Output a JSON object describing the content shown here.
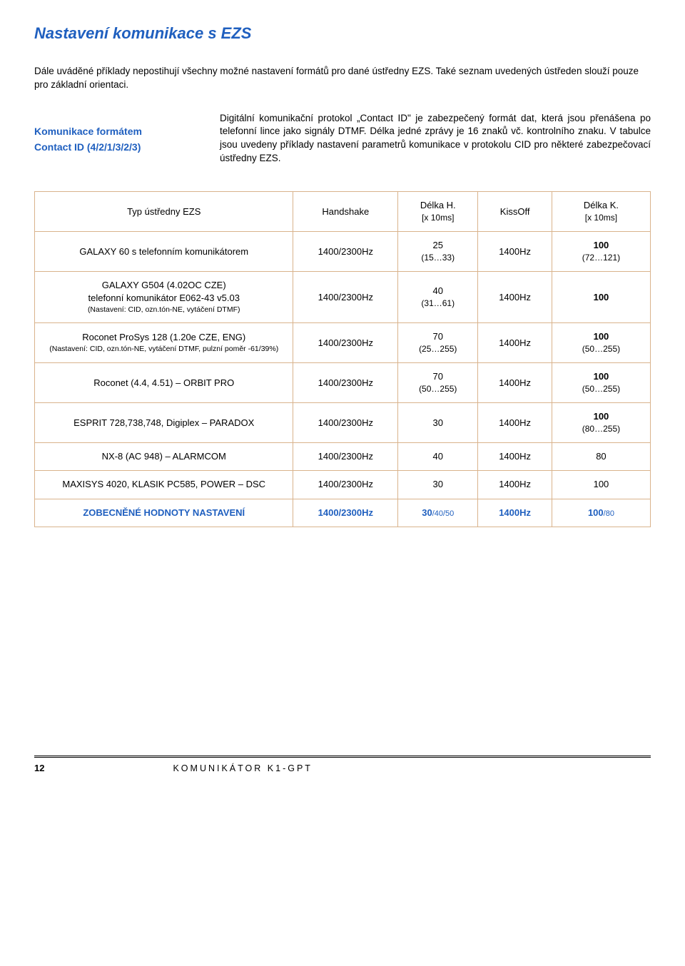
{
  "title": "Nastavení komunikace s EZS",
  "intro": "Dále uváděné příklady nepostihují všechny možné nastavení formátů pro dané ústředny EZS. Také seznam uvedených ústředen slouží pouze pro základní orientaci.",
  "info": {
    "left_line1": "Komunikace formátem",
    "left_line2": "Contact ID (4/2/1/3/2/3)",
    "right": "Digitální komunikační protokol „Contact ID\" je zabezpečený formát dat, která jsou přenášena po telefonní lince jako signály DTMF. Délka jedné zprávy je 16 znaků vč. kontrolního znaku. V tabulce jsou uvedeny příklady nastavení parametrů komunikace v protokolu CID pro některé zabezpečovací ústředny EZS."
  },
  "table": {
    "headers": {
      "type": "Typ ústředny EZS",
      "handshake": "Handshake",
      "delkaH": "Délka H.",
      "delkaH_sub": "[x 10ms]",
      "kissoff": "KissOff",
      "delkaK": "Délka K.",
      "delkaK_sub": "[x 10ms]"
    },
    "rows": [
      {
        "type_main": "GALAXY 60 s telefonním komunikátorem",
        "type_sub": "",
        "hs": "1400/2300Hz",
        "dh_top": "25",
        "dh_sub": "(15…33)",
        "ko": "1400Hz",
        "dk_top": "100",
        "dk_sub": "(72…121)",
        "dk_bold": true
      },
      {
        "type_main": "GALAXY G504 (4.02OC CZE)",
        "type_line2": "telefonní komunikátor E062-43 v5.03",
        "type_sub": "(Nastavení: CID, ozn.tón-NE, vytáčení DTMF)",
        "hs": "1400/2300Hz",
        "dh_top": "40",
        "dh_sub": "(31…61)",
        "ko": "1400Hz",
        "dk_top": "100",
        "dk_sub": "",
        "dk_bold": true
      },
      {
        "type_main": "Roconet ProSys 128 (1.20e CZE, ENG)",
        "type_sub": "(Nastavení: CID, ozn.tón-NE, vytáčení DTMF, pulzní poměr -61/39%)",
        "hs": "1400/2300Hz",
        "dh_top": "70",
        "dh_sub": "(25…255)",
        "ko": "1400Hz",
        "dk_top": "100",
        "dk_sub": "(50…255)",
        "dk_bold": true
      },
      {
        "type_main": "Roconet (4.4, 4.51) – ORBIT PRO",
        "type_sub": "",
        "hs": "1400/2300Hz",
        "dh_top": "70",
        "dh_sub": "(50…255)",
        "ko": "1400Hz",
        "dk_top": "100",
        "dk_sub": "(50…255)",
        "dk_bold": true
      },
      {
        "type_main": "ESPRIT 728,738,748, Digiplex – PARADOX",
        "type_sub": "",
        "hs": "1400/2300Hz",
        "dh_top": "30",
        "dh_sub": "",
        "ko": "1400Hz",
        "dk_top": "100",
        "dk_sub": "(80…255)",
        "dk_bold": true
      },
      {
        "type_main": "NX-8 (AC 948) – ALARMCOM",
        "type_sub": "",
        "hs": "1400/2300Hz",
        "dh_top": "40",
        "dh_sub": "",
        "ko": "1400Hz",
        "dk_top": "80",
        "dk_sub": "",
        "dk_bold": false
      },
      {
        "type_main": "MAXISYS 4020, KLASIK PC585, POWER – DSC",
        "type_sub": "",
        "hs": "1400/2300Hz",
        "dh_top": "30",
        "dh_sub": "",
        "ko": "1400Hz",
        "dk_top": "100",
        "dk_sub": "",
        "dk_bold": false
      }
    ],
    "summary": {
      "label": "ZOBECNĚNÉ HODNOTY NASTAVENÍ",
      "hs": "1400/2300Hz",
      "dh": "30",
      "dh_sub": "/40/50",
      "ko": "1400Hz",
      "dk": "100",
      "dk_sub": "/80"
    }
  },
  "footer": {
    "page": "12",
    "title": "KOMUNIKÁTOR K1-GPT"
  },
  "colors": {
    "heading": "#1f5fbf",
    "border": "#d9b38c",
    "text": "#000000",
    "bg": "#ffffff"
  }
}
